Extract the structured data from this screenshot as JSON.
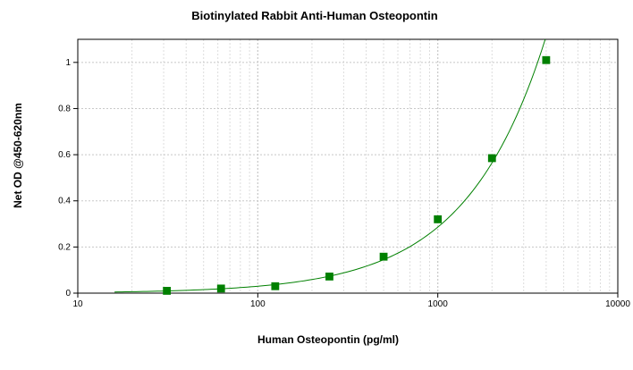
{
  "chart_data": {
    "type": "scatter",
    "title": "Biotinylated Rabbit Anti-Human Osteopontin",
    "xlabel": "Human Osteopontin (pg/ml)",
    "ylabel": "Net OD @450-620nm",
    "xscale": "log",
    "xlim": [
      10,
      10000
    ],
    "ylim": [
      0,
      1.1
    ],
    "grid": true,
    "legend": "none",
    "x_ticks": [
      "10",
      "100",
      "1000",
      "10000"
    ],
    "y_ticks": [
      "0",
      "0.2",
      "0.4",
      "0.6",
      "0.8",
      "1"
    ],
    "series": [
      {
        "x": [
          31.25,
          62.5,
          125,
          250,
          500,
          1000,
          2000,
          4000
        ],
        "y": [
          0.01,
          0.02,
          0.03,
          0.072,
          0.158,
          0.32,
          0.585,
          1.01
        ],
        "color": "#008000",
        "marker": "square",
        "fit_line": true
      }
    ]
  }
}
